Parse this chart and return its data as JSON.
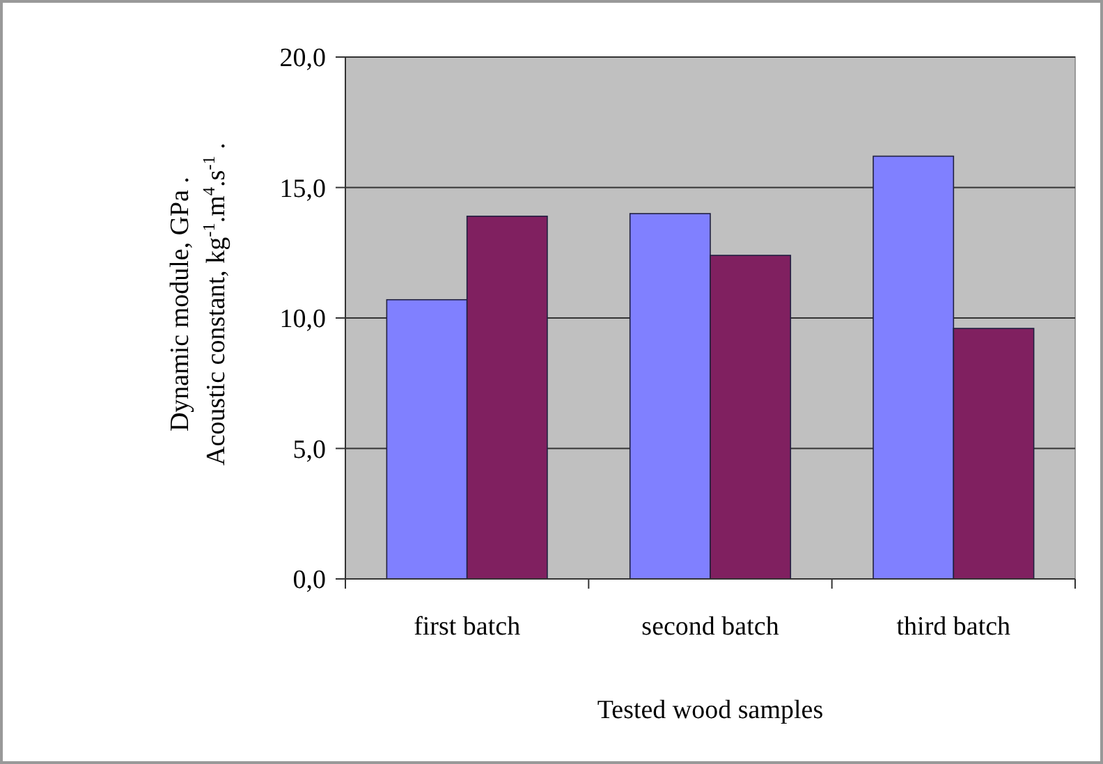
{
  "chart_data": {
    "type": "bar",
    "xlabel": "Tested wood samples",
    "ylabel": "Dynamic module, GPa .\nAcoustic constant, kg$^{-1}$.m$^{4}$.s$^{-1}$ .",
    "categories": [
      "first batch",
      "second batch",
      "third batch"
    ],
    "series": [
      {
        "color": "#8080ff",
        "values": [
          10.7,
          14.0,
          16.2
        ]
      },
      {
        "color": "#802060",
        "values": [
          13.9,
          12.4,
          9.6
        ]
      }
    ],
    "ylim": [
      0,
      20
    ],
    "yticks": [
      {
        "value": 0,
        "label": "0,0"
      },
      {
        "value": 5,
        "label": "5,0"
      },
      {
        "value": 10,
        "label": "10,0"
      },
      {
        "value": 15,
        "label": "15,0"
      },
      {
        "value": 20,
        "label": "20,0"
      }
    ],
    "grid": "y"
  }
}
